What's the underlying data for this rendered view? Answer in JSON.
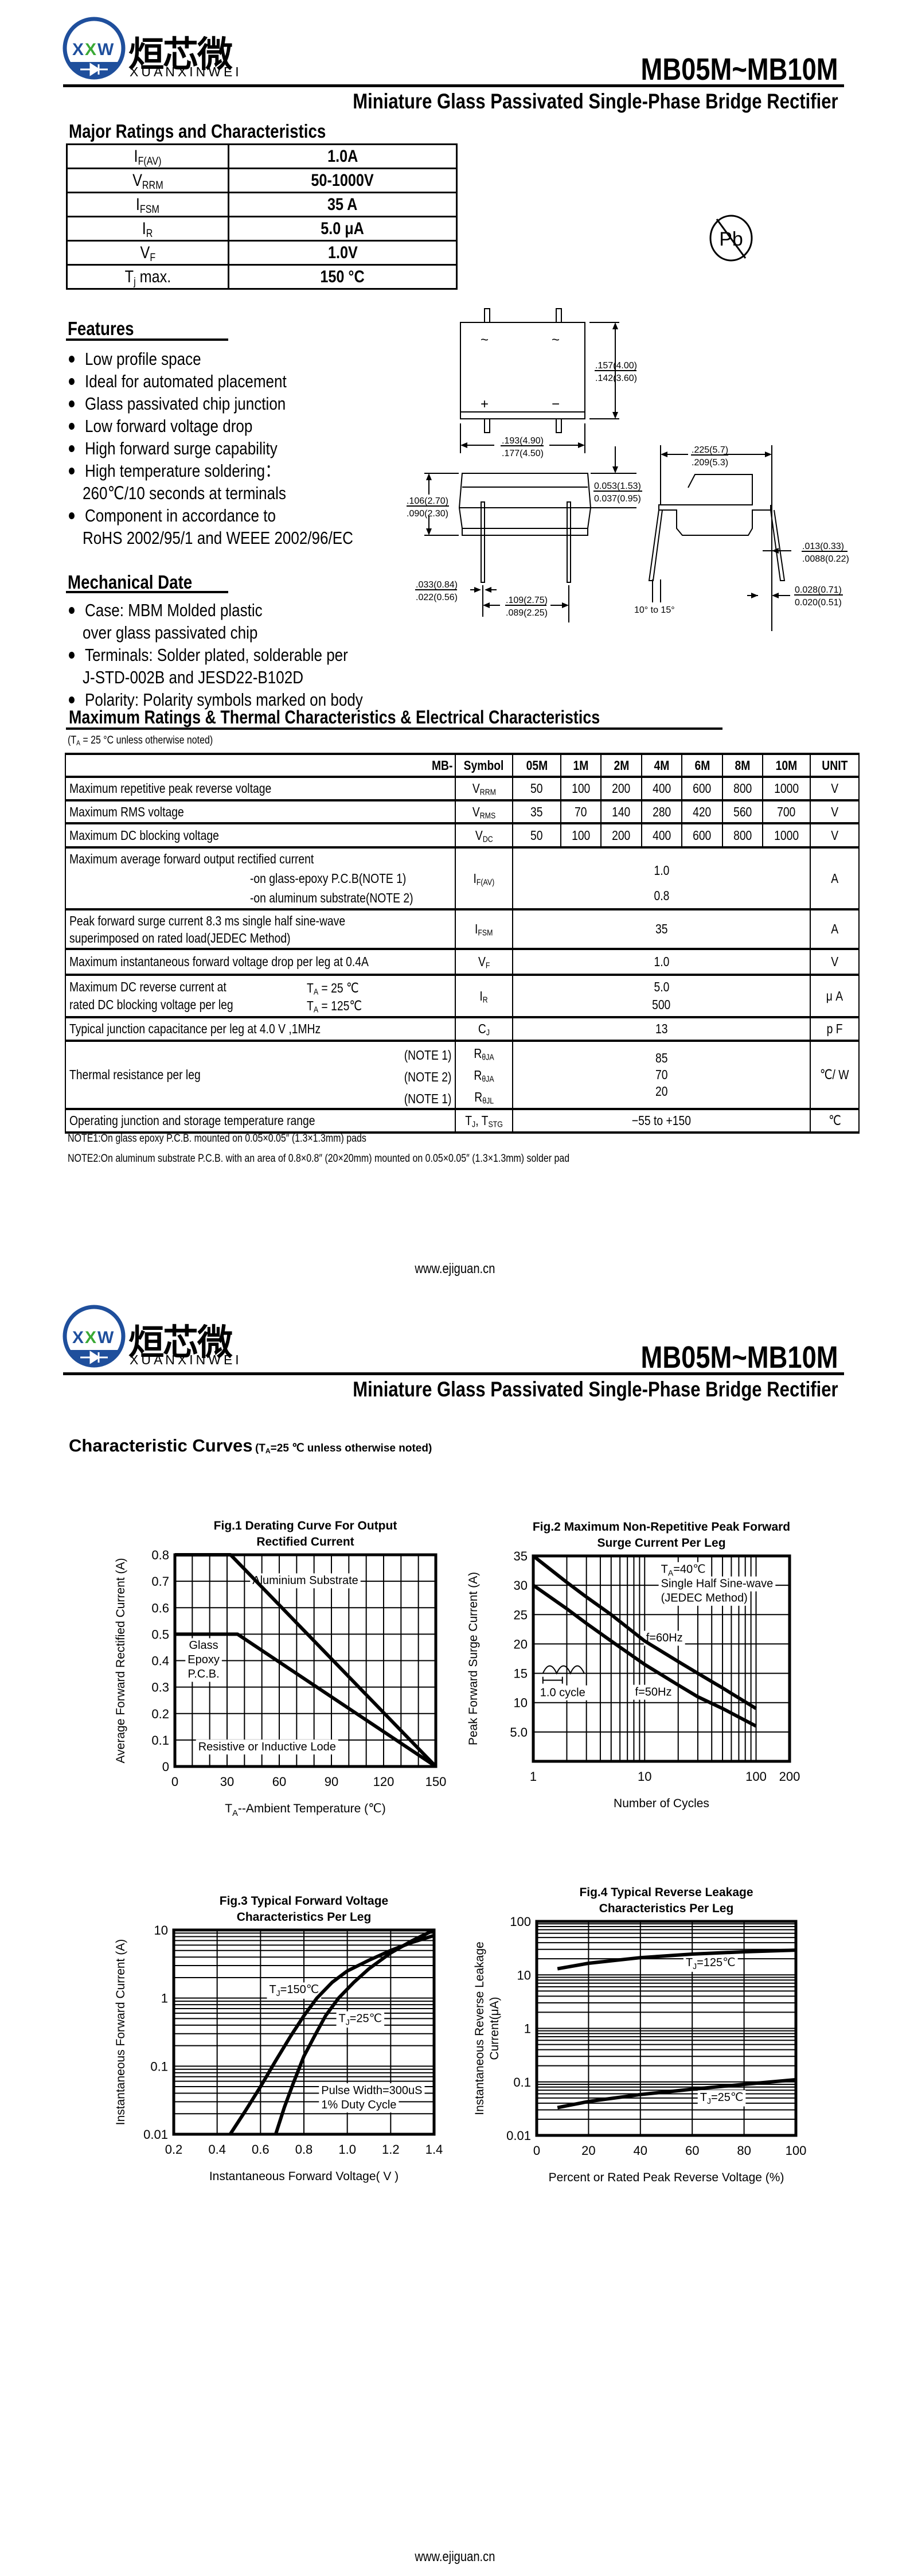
{
  "header": {
    "logo_mark": "XXW",
    "logo_cn": "烜芯微",
    "logo_en": "XUANXINWEI",
    "part_number": "MB05M~MB10M",
    "subtitle": "Miniature Glass Passivated Single-Phase Bridge Rectifier",
    "brand_color": "#1f4f9c",
    "logo_accent_color": "#3aa935"
  },
  "major": {
    "title": "Major Ratings and Characteristics",
    "rows": [
      {
        "sym": "I",
        "sub": "F(AV)",
        "suffix": "",
        "value": "1.0A"
      },
      {
        "sym": "V",
        "sub": "RRM",
        "suffix": "",
        "value": "50-1000V"
      },
      {
        "sym": "I",
        "sub": "FSM",
        "suffix": "",
        "value": "35 A"
      },
      {
        "sym": "I",
        "sub": "R",
        "suffix": "",
        "value": "5.0 μA"
      },
      {
        "sym": "V",
        "sub": "F",
        "suffix": "",
        "value": "1.0V"
      },
      {
        "sym": "T",
        "sub": "j",
        "suffix": " max.",
        "value": "150 °C"
      }
    ]
  },
  "pb_free": {
    "label": "Pb",
    "icon": "lead-free-icon"
  },
  "features": {
    "title": "Features",
    "items": [
      "Low profile space",
      "Ideal for automated placement",
      "Glass passivated chip junction",
      "Low forward voltage drop",
      "High forward surge capability",
      "High temperature soldering：",
      "260℃/10 seconds at terminals",
      "Component in accordance to",
      "RoHS 2002/95/1 and WEEE 2002/96/EC"
    ]
  },
  "mechanical": {
    "title": "Mechanical Date",
    "items": [
      "Case: MBM Molded plastic",
      "over glass passivated chip",
      "Terminals: Solder plated, solderable per",
      "J-STD-002B and JESD22-B102D",
      "Polarity: Polarity symbols marked on body"
    ]
  },
  "package": {
    "ac_symbol": "~",
    "plus_symbol": "+",
    "minus_symbol": "−",
    "dims": {
      "h_top": ".157(4.00)",
      "h_bot": ".142(3.60)",
      "w_top": ".193(4.90)",
      "w_bot": ".177(4.50)",
      "t_top": "0.053(1.53)",
      "t_bot": "0.037(0.95)",
      "b_top": ".106(2.70)",
      "b_bot": ".090(2.30)",
      "e_top": ".225(5.7)",
      "e_bot": ".209(5.3)",
      "l_top": ".013(0.33)",
      "l_bot": ".0088(0.22)",
      "p_top": ".033(0.84)",
      "p_bot": ".022(0.56)",
      "s_top": ".109(2.75)",
      "s_bot": ".089(2.25)",
      "k_top": "0.028(0.71)",
      "k_bot": "0.020(0.51)",
      "angle": "10° to 15°"
    }
  },
  "ratings": {
    "title": "Maximum Ratings & Thermal Characteristics & Electrical Characteristics",
    "cond": {
      "pre": "(T",
      "sub": "A",
      "post": " = 25 °C unless otherwise noted)"
    },
    "head": {
      "mb": "MB-",
      "symbol": "Symbol",
      "cols": [
        "05M",
        "1M",
        "2M",
        "4M",
        "6M",
        "8M",
        "10M"
      ],
      "unit": "UNIT"
    },
    "vrrm": {
      "desc": "Maximum repetitive peak reverse voltage",
      "sym": "V",
      "sub": "RRM",
      "values": [
        "50",
        "100",
        "200",
        "400",
        "600",
        "800",
        "1000"
      ],
      "unit": "V"
    },
    "vrms": {
      "desc": "Maximum RMS voltage",
      "sym": "V",
      "sub": "RMS",
      "values": [
        "35",
        "70",
        "140",
        "280",
        "420",
        "560",
        "700"
      ],
      "unit": "V"
    },
    "vdc": {
      "desc": "Maximum DC blocking voltage",
      "sym": "V",
      "sub": "DC",
      "values": [
        "50",
        "100",
        "200",
        "400",
        "600",
        "800",
        "1000"
      ],
      "unit": "V"
    },
    "ifav": {
      "desc": [
        "Maximum average forward output rectified current",
        "-on glass-epoxy P.C.B(NOTE 1)",
        "-on aluminum substrate(NOTE 2)"
      ],
      "sym": "I",
      "sub": "F(AV)",
      "values": [
        "1.0",
        "0.8"
      ],
      "unit": "A"
    },
    "ifsm": {
      "desc": [
        "Peak forward surge current 8.3 ms single half sine-wave",
        "superimposed on rated load(JEDEC Method)"
      ],
      "sym": "I",
      "sub": "FSM",
      "value": "35",
      "unit": "A"
    },
    "vf": {
      "desc": "Maximum instantaneous forward voltage drop per leg at 0.4A",
      "sym": "V",
      "sub": "F",
      "value": "1.0",
      "unit": "V"
    },
    "ir": {
      "desc": [
        "Maximum DC reverse current at",
        "rated DC blocking voltage per leg"
      ],
      "conds": [
        {
          "pre": "T",
          "sub": "A",
          "post": " = 25 ℃"
        },
        {
          "pre": "T",
          "sub": "A",
          "post": " = 125℃"
        }
      ],
      "sym": "I",
      "sub": "R",
      "values": [
        "5.0",
        "500"
      ],
      "unit": "μ A"
    },
    "cj": {
      "desc": "Typical junction capacitance per leg at 4.0 V ,1MHz",
      "sym": "C",
      "sub": "J",
      "value": "13",
      "unit": "p F"
    },
    "rth": {
      "desc": "Thermal resistance per leg",
      "notes": [
        "(NOTE 1)",
        "(NOTE 2)",
        "(NOTE 1)"
      ],
      "syms": [
        {
          "sym": "R",
          "sub": "θJA"
        },
        {
          "sym": "R",
          "sub": "θJA"
        },
        {
          "sym": "R",
          "sub": "θJL"
        }
      ],
      "values": [
        "85",
        "70",
        "20"
      ],
      "unit": "℃/ W"
    },
    "temp": {
      "desc": "Operating junction and storage temperature range",
      "sym": "T",
      "sub": "J",
      "sym2": ", T",
      "sub2": "STG",
      "value": "−55 to +150",
      "unit": "℃"
    },
    "notes": [
      "NOTE1:On glass epoxy P.C.B. mounted on 0.05×0.05″ (1.3×1.3mm) pads",
      "NOTE2:On aluminum substrate P.C.B. with an area of 0.8×0.8″ (20×20mm) mounted on 0.05×0.05″ (1.3×1.3mm) solder pad"
    ]
  },
  "footer": {
    "url": "www.ejiguan.cn"
  },
  "curves": {
    "title": "Characteristic Curves",
    "cond_pre": "(T",
    "cond_sub": "A",
    "cond_post": "=25 ℃ unless otherwise noted)"
  },
  "chart_data": [
    {
      "type": "line",
      "title": [
        "Fig.1 Derating Curve For Output",
        "Rectified Current"
      ],
      "xlabel": [
        "T",
        {
          "sub": "A"
        },
        "--Ambient Temperature (℃)"
      ],
      "ylabel": [
        "Average Forward Rectified Current (A)"
      ],
      "xscale": "linear",
      "yscale": "linear",
      "xlim": [
        0,
        150
      ],
      "ylim": [
        0,
        0.8
      ],
      "xticks": [
        0,
        30,
        60,
        90,
        120,
        150
      ],
      "xtick_labels": [
        "0",
        "30",
        "60",
        "90",
        "120",
        "150"
      ],
      "yticks": [
        0,
        0.1,
        0.2,
        0.3,
        0.4,
        0.5,
        0.6,
        0.7,
        0.8
      ],
      "ytick_labels": [
        "0",
        "0.1",
        "0.2",
        "0.3",
        "0.4",
        "0.5",
        "0.6",
        "0.7",
        "0.8"
      ],
      "grid": {
        "on": true,
        "x_step": 10,
        "y_step": 0.1
      },
      "series": [
        {
          "name": "Aluminium Substrate",
          "points": [
            [
              0,
              0.8
            ],
            [
              32,
              0.8
            ],
            [
              150,
              0
            ]
          ]
        },
        {
          "name": "Glass Epoxy P.C.B.",
          "points": [
            [
              0,
              0.5
            ],
            [
              36,
              0.5
            ],
            [
              150,
              0
            ]
          ]
        }
      ],
      "annotations": [
        {
          "lines": [
            [
              "Aluminium Substrate"
            ]
          ]
        },
        {
          "lines": [
            [
              "Glass"
            ],
            [
              "Epoxy"
            ],
            [
              "P.C.B."
            ]
          ]
        },
        {
          "lines": [
            [
              "Resistive or Inductive Lode"
            ]
          ]
        }
      ]
    },
    {
      "type": "line",
      "title": [
        "Fig.2 Maximum Non-Repetitive Peak Forward",
        "Surge Current Per Leg"
      ],
      "xlabel": [
        "Number of Cycles"
      ],
      "ylabel": [
        "Peak Forward Surge Current (A)"
      ],
      "xscale": "log",
      "yscale": "linear",
      "xlim": [
        1,
        200
      ],
      "ylim": [
        0,
        35
      ],
      "xticks": [
        1,
        10,
        100,
        200
      ],
      "xtick_labels": [
        "1",
        "10",
        "100",
        "200"
      ],
      "yticks": [
        5,
        10,
        15,
        20,
        25,
        30,
        35
      ],
      "ytick_labels": [
        "5.0",
        "10",
        "15",
        "20",
        "25",
        "30",
        "35"
      ],
      "grid": {
        "on": true,
        "x_minor": true,
        "x_max_minor": 100,
        "y_step": 5
      },
      "series": [
        {
          "name": "f=60Hz",
          "points": [
            [
              1,
              35
            ],
            [
              2,
              30.5
            ],
            [
              3,
              28
            ],
            [
              5,
              25
            ],
            [
              10,
              20.5
            ],
            [
              20,
              17
            ],
            [
              30,
              15
            ],
            [
              50,
              12.5
            ],
            [
              100,
              9
            ]
          ]
        },
        {
          "name": "f=50Hz",
          "points": [
            [
              1,
              30
            ],
            [
              2,
              26
            ],
            [
              3,
              23.5
            ],
            [
              5,
              20.5
            ],
            [
              10,
              16.5
            ],
            [
              20,
              13
            ],
            [
              30,
              11
            ],
            [
              50,
              9
            ],
            [
              100,
              6
            ]
          ]
        }
      ],
      "annotations": [
        {
          "lines": [
            [
              "T",
              {
                "sub": "A"
              },
              "=40℃"
            ],
            [
              "Single Half Sine-wave"
            ],
            [
              "(JEDEC Method)"
            ]
          ]
        },
        {
          "lines": [
            [
              "f=60Hz"
            ]
          ]
        },
        {
          "lines": [
            [
              "f=50Hz"
            ]
          ]
        },
        {
          "lines": [
            [
              "1.0 cycle"
            ]
          ]
        }
      ]
    },
    {
      "type": "line",
      "title": [
        "Fig.3 Typical Forward Voltage",
        "Characteristics Per Leg"
      ],
      "xlabel": [
        "Instantaneous Forward Voltage( V )"
      ],
      "ylabel": [
        "Instantaneous Forward Current (A)"
      ],
      "xscale": "linear",
      "yscale": "log",
      "xlim": [
        0.2,
        1.4
      ],
      "ylim": [
        0.01,
        10
      ],
      "xticks": [
        0.2,
        0.4,
        0.6,
        0.8,
        1.0,
        1.2,
        1.4
      ],
      "xtick_labels": [
        "0.2",
        "0.4",
        "0.6",
        "0.8",
        "1.0",
        "1.2",
        "1.4"
      ],
      "yticks": [
        0.01,
        0.1,
        1,
        10
      ],
      "ytick_labels": [
        "0.01",
        "0.1",
        "1",
        "10"
      ],
      "grid": {
        "on": true,
        "x_step": 0.2,
        "y_minor": true
      },
      "series": [
        {
          "name": "TJ=150℃",
          "points": [
            [
              0.46,
              0.01
            ],
            [
              0.53,
              0.022
            ],
            [
              0.6,
              0.05
            ],
            [
              0.67,
              0.12
            ],
            [
              0.74,
              0.28
            ],
            [
              0.8,
              0.55
            ],
            [
              0.86,
              1.0
            ],
            [
              0.93,
              1.7
            ],
            [
              1.0,
              2.5
            ],
            [
              1.1,
              3.6
            ],
            [
              1.2,
              5.0
            ],
            [
              1.3,
              6.6
            ],
            [
              1.4,
              8.3
            ]
          ]
        },
        {
          "name": "TJ=25℃",
          "points": [
            [
              0.67,
              0.01
            ],
            [
              0.71,
              0.025
            ],
            [
              0.75,
              0.055
            ],
            [
              0.8,
              0.14
            ],
            [
              0.85,
              0.28
            ],
            [
              0.9,
              0.55
            ],
            [
              0.96,
              1.0
            ],
            [
              1.03,
              1.7
            ],
            [
              1.1,
              2.7
            ],
            [
              1.2,
              4.6
            ],
            [
              1.3,
              7.0
            ],
            [
              1.4,
              10
            ]
          ]
        }
      ],
      "annotations": [
        {
          "lines": [
            [
              "T",
              {
                "sub": "J"
              },
              "=150℃"
            ]
          ]
        },
        {
          "lines": [
            [
              "T",
              {
                "sub": "J"
              },
              "=25℃"
            ]
          ]
        },
        {
          "lines": [
            [
              "Pulse Width=300uS"
            ],
            [
              "1% Duty Cycle"
            ]
          ]
        }
      ]
    },
    {
      "type": "line",
      "title": [
        "Fig.4 Typical Reverse Leakage",
        "Characteristics Per Leg"
      ],
      "xlabel": [
        "Percent or Rated Peak Reverse Voltage (%)"
      ],
      "ylabel": [
        "Instantaneous Reverse Leakage",
        "Current(μA)"
      ],
      "xscale": "linear",
      "yscale": "log",
      "xlim": [
        0,
        100
      ],
      "ylim": [
        0.01,
        100
      ],
      "xticks": [
        0,
        20,
        40,
        60,
        80,
        100
      ],
      "xtick_labels": [
        "0",
        "20",
        "40",
        "60",
        "80",
        "100"
      ],
      "yticks": [
        0.01,
        0.1,
        1,
        10,
        100
      ],
      "ytick_labels": [
        "0.01",
        "0.1",
        "1",
        "10",
        "100"
      ],
      "grid": {
        "on": true,
        "x_step": 20,
        "y_minor": true
      },
      "series": [
        {
          "name": "TJ=125℃",
          "points": [
            [
              8,
              13
            ],
            [
              20,
              16.5
            ],
            [
              40,
              21
            ],
            [
              60,
              24.5
            ],
            [
              80,
              27
            ],
            [
              100,
              29
            ]
          ]
        },
        {
          "name": "TJ=25℃",
          "points": [
            [
              8,
              0.033
            ],
            [
              20,
              0.043
            ],
            [
              40,
              0.058
            ],
            [
              60,
              0.073
            ],
            [
              80,
              0.09
            ],
            [
              100,
              0.11
            ]
          ]
        }
      ],
      "annotations": [
        {
          "lines": [
            [
              "T",
              {
                "sub": "J"
              },
              "=125℃"
            ]
          ]
        },
        {
          "lines": [
            [
              "T",
              {
                "sub": "J"
              },
              "=25℃"
            ]
          ]
        }
      ]
    }
  ]
}
